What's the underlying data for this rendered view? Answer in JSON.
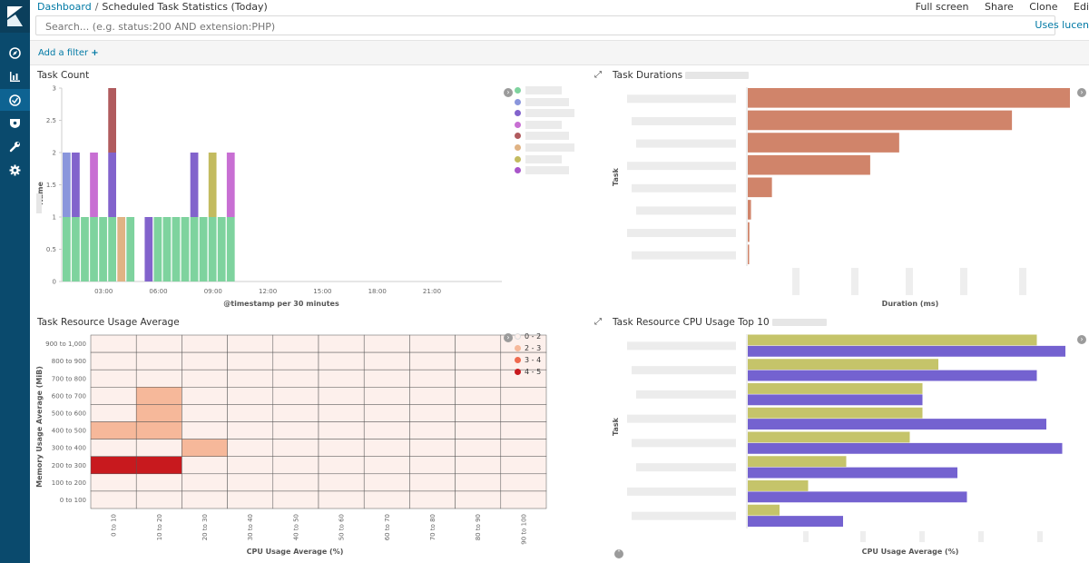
{
  "breadcrumb": {
    "root": "Dashboard",
    "separator": "/",
    "current": "Scheduled Task Statistics (Today)"
  },
  "topmenu": {
    "full_screen": "Full screen",
    "share": "Share",
    "clone": "Clone",
    "edit": "Edi"
  },
  "search": {
    "placeholder": "Search... (e.g. status:200 AND extension:PHP)",
    "lucene": "Uses lucen"
  },
  "filter": {
    "add_label": "Add a filter",
    "add_icon": "+"
  },
  "nav": {
    "icons": [
      "kibana-logo",
      "compass-icon",
      "bar-chart-icon",
      "timelion-icon",
      "shield-icon",
      "wrench-icon",
      "gear-icon"
    ]
  },
  "panels": {
    "task_count": {
      "title": "Task Count",
      "chart_data": {
        "type": "bar",
        "stacked": true,
        "xlabel": "@timestamp per 30 minutes",
        "ylabel": "Name",
        "ylim": [
          0,
          3
        ],
        "yticks": [
          "0",
          "0.5",
          "1",
          "1.5",
          "2",
          "2.5",
          "3"
        ],
        "xticks": [
          "03:00",
          "06:00",
          "09:00",
          "12:00",
          "15:00",
          "18:00",
          "21:00"
        ],
        "bars": [
          {
            "t": 0,
            "segments": [
              {
                "v": 1,
                "c": "#7ed39e"
              },
              {
                "v": 1,
                "c": "#8a96dc"
              }
            ]
          },
          {
            "t": 1,
            "segments": [
              {
                "v": 1,
                "c": "#7ed39e"
              },
              {
                "v": 1,
                "c": "#8263cc"
              }
            ]
          },
          {
            "t": 2,
            "segments": [
              {
                "v": 1,
                "c": "#7ed39e"
              }
            ]
          },
          {
            "t": 3,
            "segments": [
              {
                "v": 1,
                "c": "#7ed39e"
              },
              {
                "v": 1,
                "c": "#c86fd3"
              }
            ]
          },
          {
            "t": 4,
            "segments": [
              {
                "v": 1,
                "c": "#7ed39e"
              }
            ]
          },
          {
            "t": 5,
            "segments": [
              {
                "v": 1,
                "c": "#7ed39e"
              },
              {
                "v": 1,
                "c": "#8263cc"
              },
              {
                "v": 1,
                "c": "#b05b5e"
              }
            ]
          },
          {
            "t": 6,
            "segments": [
              {
                "v": 1,
                "c": "#e0b384"
              }
            ]
          },
          {
            "t": 7,
            "segments": [
              {
                "v": 1,
                "c": "#7ed39e"
              }
            ]
          },
          {
            "t": 9,
            "segments": [
              {
                "v": 1,
                "c": "#8263cc"
              }
            ]
          },
          {
            "t": 10,
            "segments": [
              {
                "v": 1,
                "c": "#7ed39e"
              }
            ]
          },
          {
            "t": 11,
            "segments": [
              {
                "v": 1,
                "c": "#7ed39e"
              }
            ]
          },
          {
            "t": 12,
            "segments": [
              {
                "v": 1,
                "c": "#7ed39e"
              }
            ]
          },
          {
            "t": 13,
            "segments": [
              {
                "v": 1,
                "c": "#7ed39e"
              }
            ]
          },
          {
            "t": 14,
            "segments": [
              {
                "v": 1,
                "c": "#7ed39e"
              },
              {
                "v": 1,
                "c": "#8263cc"
              }
            ]
          },
          {
            "t": 15,
            "segments": [
              {
                "v": 1,
                "c": "#7ed39e"
              }
            ]
          },
          {
            "t": 16,
            "segments": [
              {
                "v": 1,
                "c": "#7ed39e"
              },
              {
                "v": 1,
                "c": "#c3bb5f"
              }
            ]
          },
          {
            "t": 17,
            "segments": [
              {
                "v": 1,
                "c": "#7ed39e"
              }
            ]
          },
          {
            "t": 18,
            "segments": [
              {
                "v": 1,
                "c": "#7ed39e"
              },
              {
                "v": 1,
                "c": "#c86fd3"
              }
            ]
          }
        ],
        "legend_colors": [
          "#7ed39e",
          "#8a96dc",
          "#8263cc",
          "#c86fd3",
          "#b05b5e",
          "#e0b384",
          "#c3bb5f",
          "#a855c9"
        ]
      }
    },
    "task_durations": {
      "title": "Task Durations",
      "chart_data": {
        "type": "bar",
        "orientation": "horizontal",
        "xlabel": "Duration (ms)",
        "ylabel": "Task",
        "values": [
          100,
          82,
          47,
          38,
          7.5,
          1,
          0.5,
          0.3
        ],
        "color": "#d0846a"
      }
    },
    "resource_usage": {
      "title": "Task Resource Usage Average",
      "chart_data": {
        "type": "heatmap",
        "xlabel": "CPU Usage Average (%)",
        "ylabel": "Memory Usage Average (MiB)",
        "x_categories": [
          "0 to 10",
          "10 to 20",
          "20 to 30",
          "30 to 40",
          "40 to 50",
          "50 to 60",
          "60 to 70",
          "70 to 80",
          "80 to 90",
          "90 to 100"
        ],
        "y_categories": [
          "900 to 1,000",
          "800 to 900",
          "700 to 800",
          "600 to 700",
          "500 to 600",
          "400 to 500",
          "300 to 400",
          "200 to 300",
          "100 to 200",
          "0 to 100"
        ],
        "cells": [
          {
            "x": 1,
            "y": 3,
            "bucket": 1
          },
          {
            "x": 1,
            "y": 4,
            "bucket": 1
          },
          {
            "x": 0,
            "y": 5,
            "bucket": 1
          },
          {
            "x": 1,
            "y": 5,
            "bucket": 1
          },
          {
            "x": 2,
            "y": 6,
            "bucket": 1
          },
          {
            "x": 0,
            "y": 7,
            "bucket": 3
          },
          {
            "x": 1,
            "y": 7,
            "bucket": 3
          }
        ],
        "legend": [
          {
            "label": "0 - 2",
            "color": "#fdf0ec"
          },
          {
            "label": "2 - 3",
            "color": "#f6b89a"
          },
          {
            "label": "3 - 4",
            "color": "#ef6a4f"
          },
          {
            "label": "4 - 5",
            "color": "#c8191e"
          }
        ],
        "bucket_colors": [
          "#fdf0ec",
          "#f6b89a",
          "#ef6a4f",
          "#c8191e"
        ]
      }
    },
    "cpu_top": {
      "title": "Task Resource CPU Usage Top 10",
      "chart_data": {
        "type": "bar",
        "orientation": "horizontal",
        "xlabel": "CPU Usage Average (%)",
        "ylabel": "Task",
        "series": [
          {
            "color": "#c5c46a",
            "values": [
              91,
              60,
              55,
              55,
              51,
              31,
              19,
              10
            ]
          },
          {
            "color": "#7462d0",
            "values": [
              100,
              91,
              55,
              94,
              99,
              66,
              69,
              30
            ]
          }
        ]
      }
    }
  }
}
